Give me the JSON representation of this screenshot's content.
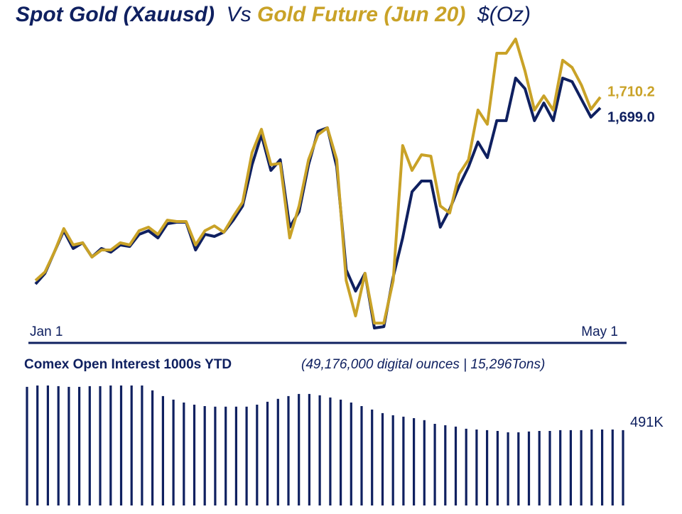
{
  "chart_data": [
    {
      "type": "line",
      "title_joiner": "Vs",
      "unit": "$(Oz)",
      "xtick_labels": [
        "Jan 1",
        "May 1"
      ],
      "series": [
        {
          "name": "Spot Gold (Xauusd)",
          "color": "#0f2060",
          "end_label": "1,699.0",
          "values": [
            1516.6,
            1527.7,
            1549.7,
            1571.8,
            1553.4,
            1559.3,
            1544.6,
            1553.4,
            1549.7,
            1557.1,
            1555.6,
            1568.1,
            1571.8,
            1564.4,
            1579.1,
            1580.6,
            1580.6,
            1551.9,
            1568.1,
            1565.9,
            1570.3,
            1582.8,
            1597.5,
            1640.2,
            1671.1,
            1634.3,
            1645.3,
            1575.5,
            1591.6,
            1640.2,
            1674.7,
            1678.4,
            1638.0,
            1531.4,
            1509.3,
            1527.7,
            1471.1,
            1472.5,
            1524.0,
            1564.4,
            1612.2,
            1623.3,
            1623.3,
            1575.5,
            1593.9,
            1618.1,
            1638.0,
            1663.7,
            1647.5,
            1685.8,
            1685.8,
            1729.9,
            1718.9,
            1685.8,
            1704.1,
            1685.8,
            1729.9,
            1726.2,
            1707.8,
            1689.4,
            1699.0
          ]
        },
        {
          "name": "Gold Future (Jun 20)",
          "color": "#c9a227",
          "end_label": "1,710.2",
          "values": [
            1520.3,
            1529.1,
            1549.7,
            1574.0,
            1557.1,
            1559.3,
            1544.6,
            1551.9,
            1551.9,
            1559.3,
            1557.1,
            1571.8,
            1575.5,
            1568.1,
            1582.8,
            1581.4,
            1581.4,
            1557.1,
            1571.8,
            1576.9,
            1570.3,
            1586.5,
            1601.2,
            1652.7,
            1676.9,
            1640.2,
            1641.6,
            1564.4,
            1597.5,
            1645.3,
            1671.1,
            1678.4,
            1645.3,
            1520.3,
            1483.6,
            1527.7,
            1476.2,
            1476.2,
            1520.3,
            1660.0,
            1634.3,
            1650.5,
            1649.0,
            1597.5,
            1590.2,
            1630.6,
            1645.3,
            1696.8,
            1682.1,
            1755.6,
            1755.6,
            1770.3,
            1737.2,
            1696.8,
            1711.5,
            1696.8,
            1748.3,
            1740.9,
            1722.5,
            1697.5,
            1710.2
          ]
        }
      ]
    },
    {
      "type": "bar",
      "title": "Comex Open Interest 1000s YTD",
      "subtitle": "(49,176,000 digital ounces | 15,296Tons)",
      "color": "#0f2060",
      "values": [
        773,
        782,
        782,
        778,
        773,
        773,
        778,
        778,
        782,
        782,
        782,
        782,
        750,
        713,
        690,
        671,
        657,
        648,
        644,
        644,
        644,
        644,
        657,
        676,
        695,
        713,
        727,
        727,
        718,
        704,
        690,
        671,
        648,
        625,
        602,
        588,
        579,
        569,
        556,
        532,
        523,
        514,
        500,
        495,
        491,
        486,
        477,
        477,
        482,
        486,
        486,
        491,
        491,
        491,
        495,
        495,
        495,
        491
      ],
      "value_labels": [
        null,
        null,
        null,
        null,
        null,
        null,
        null,
        null,
        null,
        null,
        null,
        null,
        null,
        null,
        null,
        null,
        null,
        null,
        null,
        null,
        null,
        null,
        null,
        null,
        null,
        null,
        null,
        null,
        null,
        null,
        null,
        null,
        null,
        null,
        null,
        null,
        null,
        null,
        null,
        null,
        null,
        null,
        null,
        null,
        null,
        null,
        null,
        null,
        null,
        null,
        null,
        null,
        null,
        null,
        null,
        null,
        null,
        "491K"
      ]
    }
  ]
}
